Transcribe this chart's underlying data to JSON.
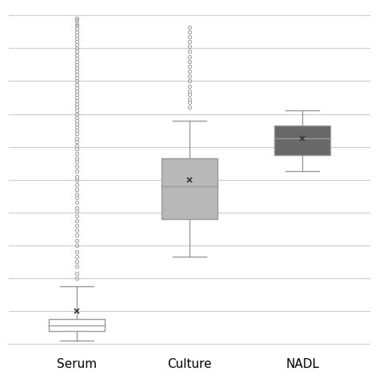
{
  "categories": [
    "Serum",
    "Culture",
    "NADL"
  ],
  "box_colors": [
    "#ffffff",
    "#b8b8b8",
    "#686868"
  ],
  "edge_color": "#999999",
  "background_color": "#ffffff",
  "grid_color": "#cccccc",
  "ylim": [
    -0.02,
    1.02
  ],
  "serum": {
    "q1": 0.04,
    "median": 0.055,
    "q3": 0.075,
    "whisker_low": 0.01,
    "whisker_high": 0.175,
    "mean": 0.1,
    "outliers": [
      0.2,
      0.215,
      0.235,
      0.25,
      0.265,
      0.28,
      0.3,
      0.315,
      0.33,
      0.345,
      0.36,
      0.375,
      0.39,
      0.405,
      0.415,
      0.43,
      0.445,
      0.455,
      0.47,
      0.485,
      0.5,
      0.51,
      0.525,
      0.54,
      0.555,
      0.565,
      0.58,
      0.595,
      0.605,
      0.615,
      0.625,
      0.64,
      0.65,
      0.66,
      0.67,
      0.68,
      0.69,
      0.7,
      0.71,
      0.72,
      0.73,
      0.74,
      0.75,
      0.76,
      0.77,
      0.78,
      0.79,
      0.8,
      0.81,
      0.82,
      0.83,
      0.84,
      0.85,
      0.86,
      0.87,
      0.88,
      0.89,
      0.9,
      0.91,
      0.92,
      0.93,
      0.94,
      0.95,
      0.96,
      0.97,
      0.975,
      0.985,
      0.99
    ]
  },
  "culture": {
    "q1": 0.38,
    "median": 0.48,
    "q3": 0.565,
    "whisker_low": 0.265,
    "whisker_high": 0.68,
    "mean": 0.5,
    "outliers": [
      0.72,
      0.735,
      0.745,
      0.76,
      0.77,
      0.785,
      0.8,
      0.815,
      0.83,
      0.845,
      0.86,
      0.875,
      0.89,
      0.905,
      0.92,
      0.935,
      0.95,
      0.965
    ]
  },
  "nadl": {
    "q1": 0.575,
    "median": 0.625,
    "q3": 0.665,
    "whisker_low": 0.525,
    "whisker_high": 0.71,
    "mean": 0.625,
    "outliers": []
  }
}
